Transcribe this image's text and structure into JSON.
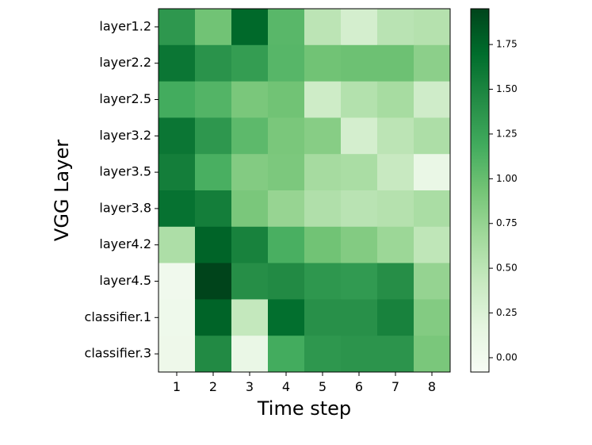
{
  "chart_data": {
    "type": "heatmap",
    "title": "",
    "xlabel": "Time step",
    "ylabel": "VGG Layer",
    "x_categories": [
      "1",
      "2",
      "3",
      "4",
      "5",
      "6",
      "7",
      "8"
    ],
    "y_categories": [
      "layer1.2",
      "layer2.2",
      "layer2.5",
      "layer3.2",
      "layer3.5",
      "layer3.8",
      "layer4.2",
      "layer4.5",
      "classifier.1",
      "classifier.3"
    ],
    "values": [
      [
        1.35,
        0.95,
        1.72,
        1.07,
        0.5,
        0.32,
        0.52,
        0.55
      ],
      [
        1.62,
        1.38,
        1.3,
        1.08,
        0.95,
        0.97,
        0.97,
        0.8
      ],
      [
        1.18,
        1.1,
        0.9,
        0.95,
        0.37,
        0.56,
        0.64,
        0.36
      ],
      [
        1.62,
        1.35,
        1.05,
        0.9,
        0.83,
        0.32,
        0.5,
        0.6
      ],
      [
        1.55,
        1.15,
        0.85,
        0.89,
        0.65,
        0.62,
        0.42,
        0.1
      ],
      [
        1.65,
        1.55,
        0.9,
        0.74,
        0.58,
        0.52,
        0.55,
        0.62
      ],
      [
        0.6,
        1.75,
        1.52,
        1.15,
        0.95,
        0.85,
        0.71,
        0.48
      ],
      [
        0.02,
        1.95,
        1.42,
        1.45,
        1.35,
        1.32,
        1.42,
        0.75
      ],
      [
        0.04,
        1.75,
        0.45,
        1.68,
        1.4,
        1.4,
        1.52,
        0.85
      ],
      [
        0.05,
        1.45,
        0.1,
        1.18,
        1.35,
        1.37,
        1.37,
        0.9
      ]
    ],
    "vmin": -0.08,
    "vmax": 1.95,
    "colormap": "Greens",
    "colorbar_ticks": [
      "0.00",
      "0.25",
      "0.50",
      "0.75",
      "1.00",
      "1.25",
      "1.50",
      "1.75"
    ],
    "grid": false
  }
}
